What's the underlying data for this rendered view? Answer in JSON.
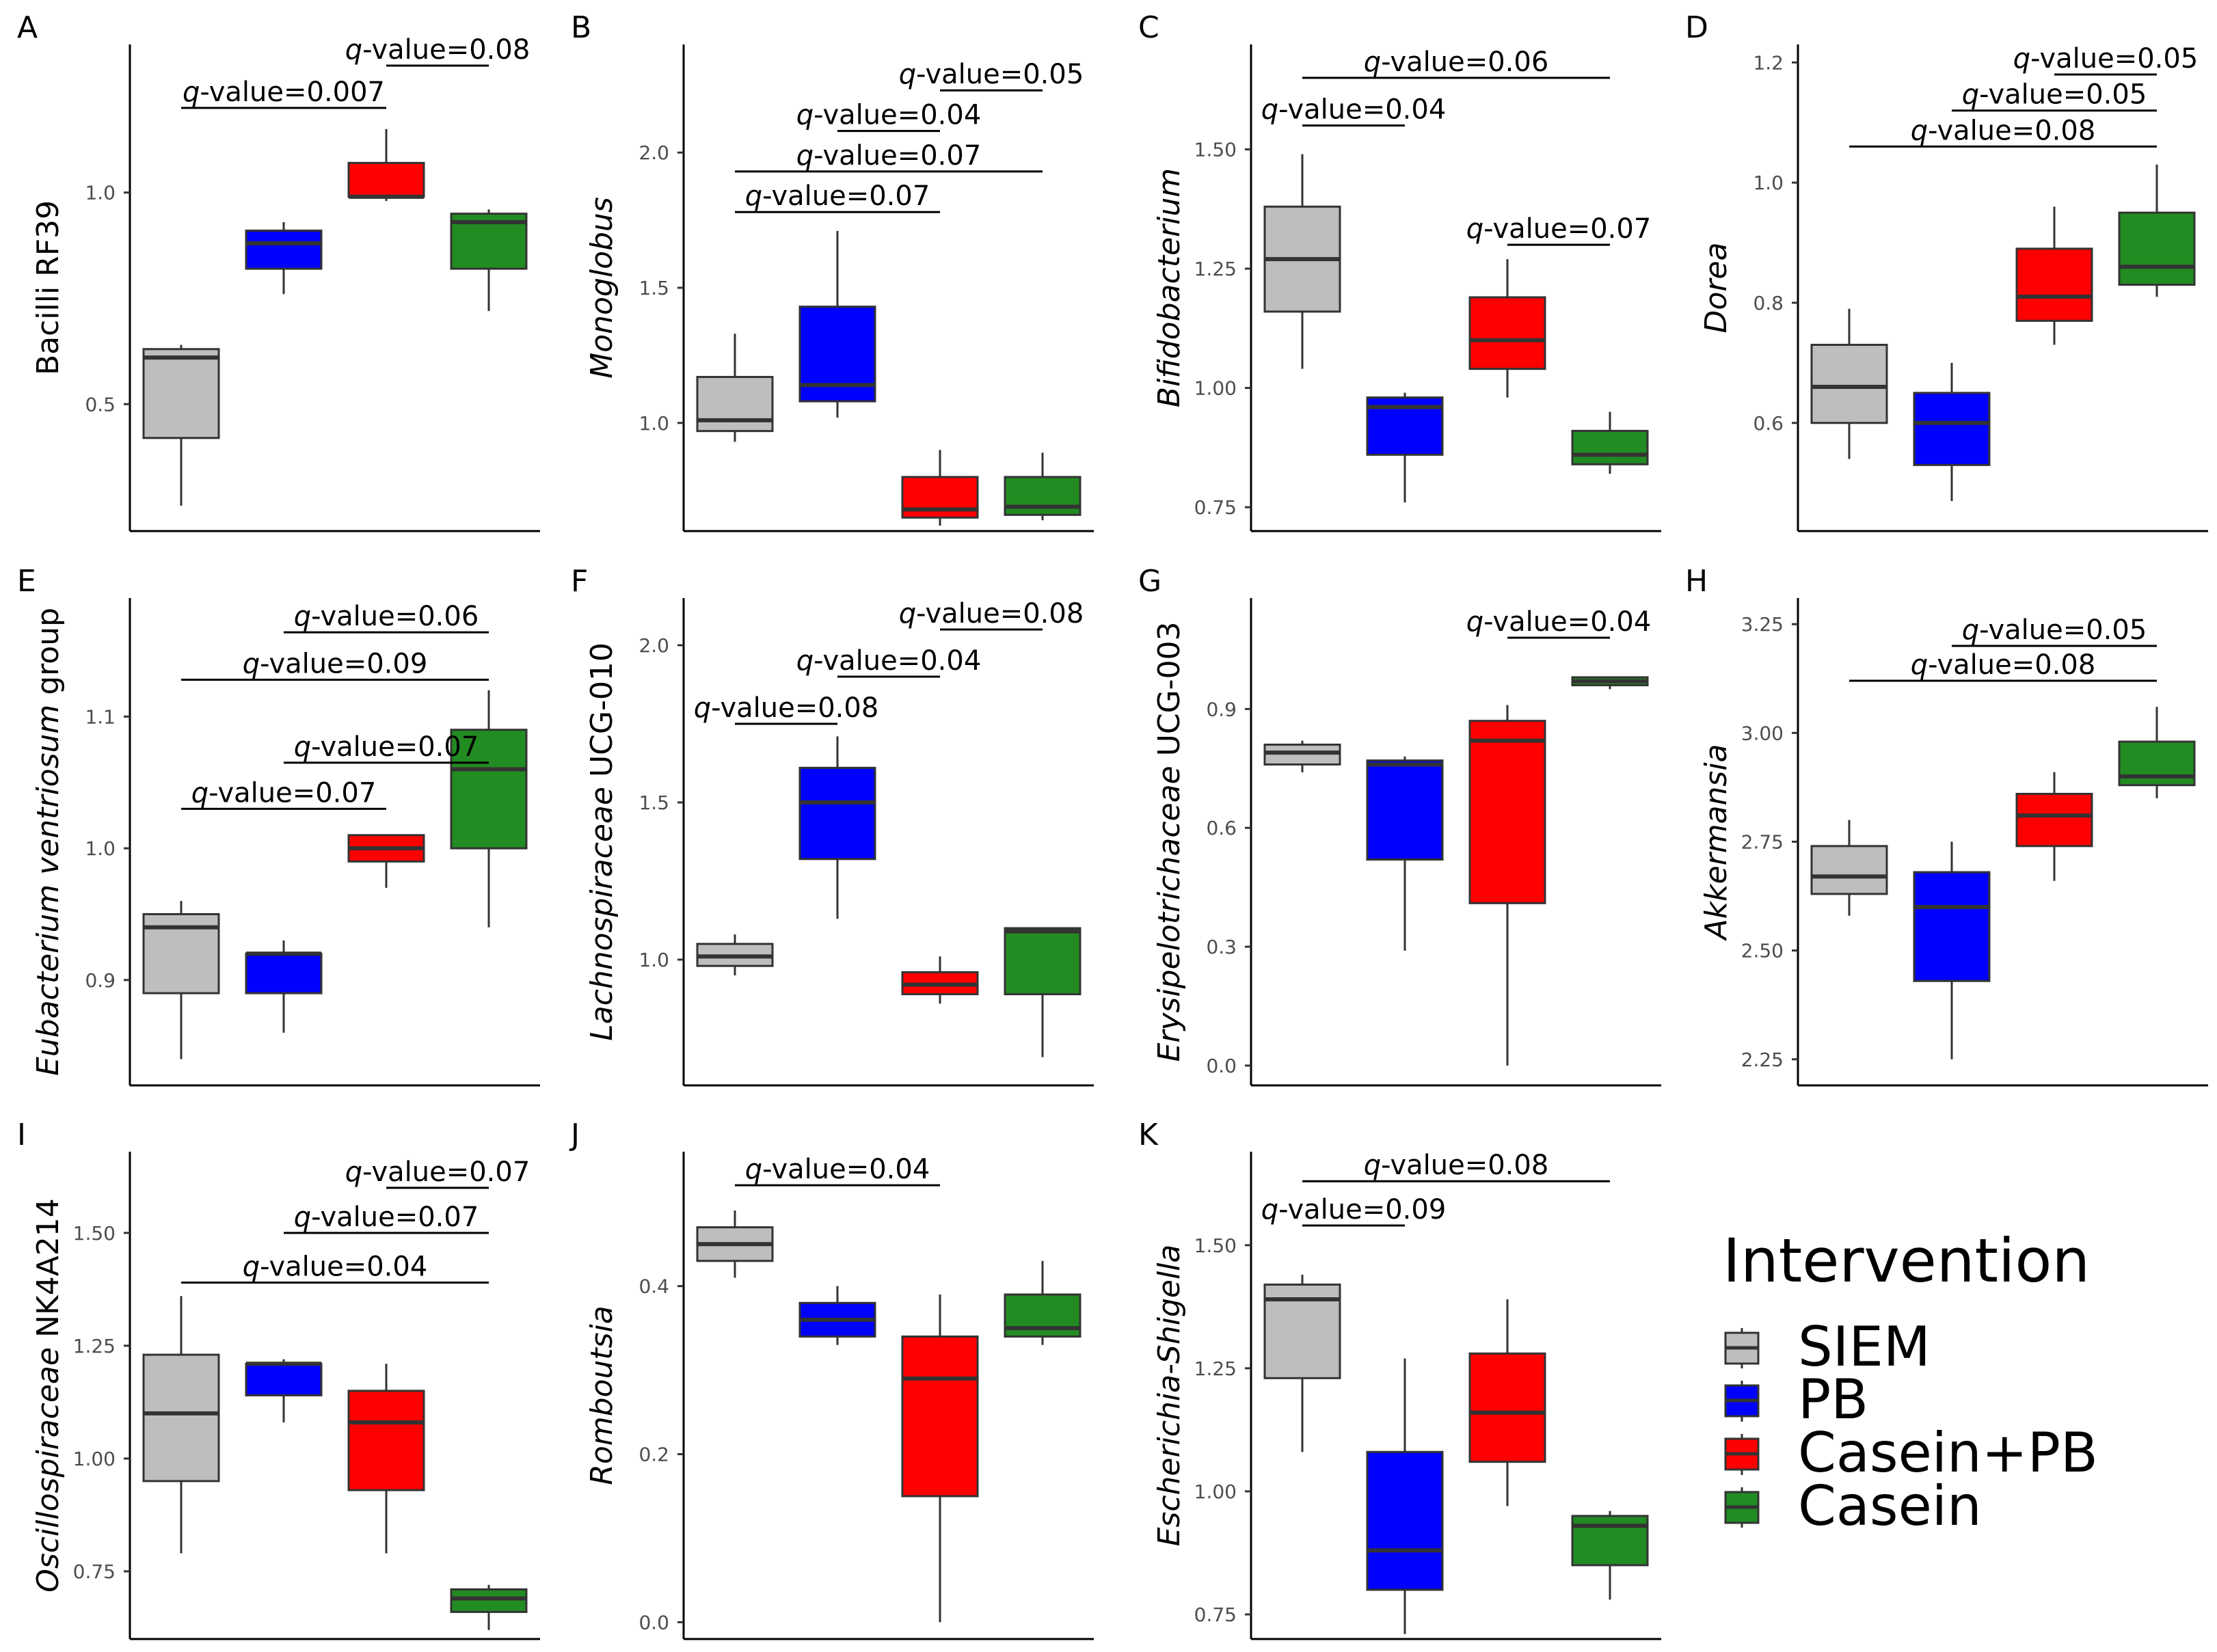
{
  "chart_data": [
    {
      "type": "box",
      "panel": "A",
      "ylabel": "Bacilli RF39",
      "ylabel_italic": false,
      "ylim": [
        0.2,
        1.35
      ],
      "yticks": [
        "0.5",
        "1.0"
      ],
      "groups": [
        "SIEM",
        "PB",
        "Casein+PB",
        "Casein"
      ],
      "boxes": [
        {
          "group": "SIEM",
          "min": 0.26,
          "q1": 0.42,
          "median": 0.61,
          "q3": 0.63,
          "max": 0.64
        },
        {
          "group": "PB",
          "min": 0.76,
          "q1": 0.82,
          "median": 0.88,
          "q3": 0.91,
          "max": 0.93
        },
        {
          "group": "Casein+PB",
          "min": 0.98,
          "q1": 0.99,
          "median": 0.99,
          "q3": 1.07,
          "max": 1.15
        },
        {
          "group": "Casein",
          "min": 0.72,
          "q1": 0.82,
          "median": 0.93,
          "q3": 0.95,
          "max": 0.96
        }
      ],
      "comparisons": [
        {
          "g1": 1,
          "g2": 3,
          "y": 1.2,
          "q": "0.007"
        },
        {
          "g1": 3,
          "g2": 4,
          "y": 1.3,
          "q": "0.08"
        }
      ]
    },
    {
      "type": "box",
      "panel": "B",
      "ylabel": "Monoglobus",
      "ylabel_italic": true,
      "ylim": [
        0.6,
        2.4
      ],
      "yticks": [
        "1.0",
        "1.5",
        "2.0"
      ],
      "groups": [
        "SIEM",
        "PB",
        "Casein+PB",
        "Casein"
      ],
      "boxes": [
        {
          "group": "SIEM",
          "min": 0.93,
          "q1": 0.97,
          "median": 1.01,
          "q3": 1.17,
          "max": 1.33
        },
        {
          "group": "PB",
          "min": 1.02,
          "q1": 1.08,
          "median": 1.14,
          "q3": 1.43,
          "max": 1.71
        },
        {
          "group": "Casein+PB",
          "min": 0.62,
          "q1": 0.65,
          "median": 0.68,
          "q3": 0.8,
          "max": 0.9
        },
        {
          "group": "Casein",
          "min": 0.64,
          "q1": 0.66,
          "median": 0.69,
          "q3": 0.8,
          "max": 0.89
        }
      ],
      "comparisons": [
        {
          "g1": 1,
          "g2": 3,
          "y": 1.78,
          "q": "0.07"
        },
        {
          "g1": 1,
          "g2": 4,
          "y": 1.93,
          "q": "0.07"
        },
        {
          "g1": 2,
          "g2": 3,
          "y": 2.08,
          "q": "0.04"
        },
        {
          "g1": 3,
          "g2": 4,
          "y": 2.23,
          "q": "0.05"
        }
      ]
    },
    {
      "type": "box",
      "panel": "C",
      "ylabel": "Bifidobacterium",
      "ylabel_italic": true,
      "ylim": [
        0.7,
        1.72
      ],
      "yticks": [
        "0.75",
        "1.00",
        "1.25",
        "1.50"
      ],
      "groups": [
        "SIEM",
        "PB",
        "Casein+PB",
        "Casein"
      ],
      "boxes": [
        {
          "group": "SIEM",
          "min": 1.04,
          "q1": 1.16,
          "median": 1.27,
          "q3": 1.38,
          "max": 1.49
        },
        {
          "group": "PB",
          "min": 0.76,
          "q1": 0.86,
          "median": 0.96,
          "q3": 0.98,
          "max": 0.99
        },
        {
          "group": "Casein+PB",
          "min": 0.98,
          "q1": 1.04,
          "median": 1.1,
          "q3": 1.19,
          "max": 1.27
        },
        {
          "group": "Casein",
          "min": 0.82,
          "q1": 0.84,
          "median": 0.86,
          "q3": 0.91,
          "max": 0.95
        }
      ],
      "comparisons": [
        {
          "g1": 3,
          "g2": 4,
          "y": 1.3,
          "q": "0.07"
        },
        {
          "g1": 1,
          "g2": 2,
          "y": 1.55,
          "q": "0.04"
        },
        {
          "g1": 1,
          "g2": 4,
          "y": 1.65,
          "q": "0.06"
        }
      ]
    },
    {
      "type": "box",
      "panel": "D",
      "ylabel": "Dorea",
      "ylabel_italic": true,
      "ylim": [
        0.42,
        1.23
      ],
      "yticks": [
        "0.6",
        "0.8",
        "1.0",
        "1.2"
      ],
      "groups": [
        "SIEM",
        "PB",
        "Casein+PB",
        "Casein"
      ],
      "boxes": [
        {
          "group": "SIEM",
          "min": 0.54,
          "q1": 0.6,
          "median": 0.66,
          "q3": 0.73,
          "max": 0.79
        },
        {
          "group": "PB",
          "min": 0.47,
          "q1": 0.53,
          "median": 0.6,
          "q3": 0.65,
          "max": 0.7
        },
        {
          "group": "Casein+PB",
          "min": 0.73,
          "q1": 0.77,
          "median": 0.81,
          "q3": 0.89,
          "max": 0.96
        },
        {
          "group": "Casein",
          "min": 0.81,
          "q1": 0.83,
          "median": 0.86,
          "q3": 0.95,
          "max": 1.03
        }
      ],
      "comparisons": [
        {
          "g1": 1,
          "g2": 4,
          "y": 1.06,
          "q": "0.08"
        },
        {
          "g1": 2,
          "g2": 4,
          "y": 1.12,
          "q": "0.05"
        },
        {
          "g1": 3,
          "g2": 4,
          "y": 1.18,
          "q": "0.05"
        }
      ]
    },
    {
      "type": "box",
      "panel": "E",
      "ylabel": "Eubacterium ventriosum group",
      "ylabel_italic": true,
      "ylabel_plain_suffix": " group",
      "ylabel_italic_part": "Eubacterium ventriosum",
      "ylim": [
        0.82,
        1.19
      ],
      "yticks": [
        "0.9",
        "1.0",
        "1.1"
      ],
      "groups": [
        "SIEM",
        "PB",
        "Casein+PB",
        "Casein"
      ],
      "boxes": [
        {
          "group": "SIEM",
          "min": 0.84,
          "q1": 0.89,
          "median": 0.94,
          "q3": 0.95,
          "max": 0.96
        },
        {
          "group": "PB",
          "min": 0.86,
          "q1": 0.89,
          "median": 0.92,
          "q3": 0.92,
          "max": 0.93
        },
        {
          "group": "Casein+PB",
          "min": 0.97,
          "q1": 0.99,
          "median": 1.0,
          "q3": 1.01,
          "max": 1.01
        },
        {
          "group": "Casein",
          "min": 0.94,
          "q1": 1.0,
          "median": 1.06,
          "q3": 1.09,
          "max": 1.12
        }
      ],
      "comparisons": [
        {
          "g1": 1,
          "g2": 3,
          "y": 1.03,
          "q": "0.07"
        },
        {
          "g1": 2,
          "g2": 4,
          "y": 1.065,
          "q": "0.07"
        },
        {
          "g1": 1,
          "g2": 4,
          "y": 1.128,
          "q": "0.09"
        },
        {
          "g1": 2,
          "g2": 4,
          "y": 1.164,
          "q": "0.06"
        }
      ]
    },
    {
      "type": "box",
      "panel": "F",
      "ylabel": "Lachnospiraceae UCG-010",
      "ylabel_italic": true,
      "ylabel_plain_suffix": " UCG-010",
      "ylabel_italic_part": "Lachnospiraceae",
      "ylim": [
        0.6,
        2.15
      ],
      "yticks": [
        "1.0",
        "1.5",
        "2.0"
      ],
      "groups": [
        "SIEM",
        "PB",
        "Casein+PB",
        "Casein"
      ],
      "boxes": [
        {
          "group": "SIEM",
          "min": 0.95,
          "q1": 0.98,
          "median": 1.01,
          "q3": 1.05,
          "max": 1.08
        },
        {
          "group": "PB",
          "min": 1.13,
          "q1": 1.32,
          "median": 1.5,
          "q3": 1.61,
          "max": 1.71
        },
        {
          "group": "Casein+PB",
          "min": 0.86,
          "q1": 0.89,
          "median": 0.92,
          "q3": 0.96,
          "max": 1.01
        },
        {
          "group": "Casein",
          "min": 0.69,
          "q1": 0.89,
          "median": 1.09,
          "q3": 1.1,
          "max": 1.1
        }
      ],
      "comparisons": [
        {
          "g1": 1,
          "g2": 2,
          "y": 1.75,
          "q": "0.08"
        },
        {
          "g1": 2,
          "g2": 3,
          "y": 1.9,
          "q": "0.04"
        },
        {
          "g1": 3,
          "g2": 4,
          "y": 2.05,
          "q": "0.08"
        }
      ]
    },
    {
      "type": "box",
      "panel": "G",
      "ylabel": "Erysipelotrichaceae UCG-003",
      "ylabel_italic": true,
      "ylabel_plain_suffix": " UCG-003",
      "ylabel_italic_part": "Erysipelotrichaceae",
      "ylim": [
        -0.05,
        1.18
      ],
      "yticks": [
        "0.0",
        "0.3",
        "0.6",
        "0.9"
      ],
      "groups": [
        "SIEM",
        "PB",
        "Casein+PB",
        "Casein"
      ],
      "boxes": [
        {
          "group": "SIEM",
          "min": 0.74,
          "q1": 0.76,
          "median": 0.79,
          "q3": 0.81,
          "max": 0.82
        },
        {
          "group": "PB",
          "min": 0.29,
          "q1": 0.52,
          "median": 0.76,
          "q3": 0.77,
          "max": 0.78
        },
        {
          "group": "Casein+PB",
          "min": 0.0,
          "q1": 0.41,
          "median": 0.82,
          "q3": 0.87,
          "max": 0.91
        },
        {
          "group": "Casein",
          "min": 0.95,
          "q1": 0.96,
          "median": 0.97,
          "q3": 0.98,
          "max": 0.98
        }
      ],
      "comparisons": [
        {
          "g1": 3,
          "g2": 4,
          "y": 1.08,
          "q": "0.04"
        }
      ]
    },
    {
      "type": "box",
      "panel": "H",
      "ylabel": "Akkermansia",
      "ylabel_italic": true,
      "ylim": [
        2.19,
        3.31
      ],
      "yticks": [
        "2.25",
        "2.50",
        "2.75",
        "3.00",
        "3.25"
      ],
      "groups": [
        "SIEM",
        "PB",
        "Casein+PB",
        "Casein"
      ],
      "boxes": [
        {
          "group": "SIEM",
          "min": 2.58,
          "q1": 2.63,
          "median": 2.67,
          "q3": 2.74,
          "max": 2.8
        },
        {
          "group": "PB",
          "min": 2.25,
          "q1": 2.43,
          "median": 2.6,
          "q3": 2.68,
          "max": 2.75
        },
        {
          "group": "Casein+PB",
          "min": 2.66,
          "q1": 2.74,
          "median": 2.81,
          "q3": 2.86,
          "max": 2.91
        },
        {
          "group": "Casein",
          "min": 2.85,
          "q1": 2.88,
          "median": 2.9,
          "q3": 2.98,
          "max": 3.06
        }
      ],
      "comparisons": [
        {
          "g1": 1,
          "g2": 4,
          "y": 3.12,
          "q": "0.08"
        },
        {
          "g1": 2,
          "g2": 4,
          "y": 3.2,
          "q": "0.05"
        }
      ]
    },
    {
      "type": "box",
      "panel": "I",
      "ylabel": "Oscillospiraceae NK4A214",
      "ylabel_italic": true,
      "ylabel_plain_suffix": " NK4A214",
      "ylabel_italic_part": "Oscillospiraceae",
      "ylim": [
        0.6,
        1.68
      ],
      "yticks": [
        "0.75",
        "1.00",
        "1.25",
        "1.50"
      ],
      "groups": [
        "SIEM",
        "PB",
        "Casein+PB",
        "Casein"
      ],
      "boxes": [
        {
          "group": "SIEM",
          "min": 0.79,
          "q1": 0.95,
          "median": 1.1,
          "q3": 1.23,
          "max": 1.36
        },
        {
          "group": "PB",
          "min": 1.08,
          "q1": 1.14,
          "median": 1.21,
          "q3": 1.21,
          "max": 1.22
        },
        {
          "group": "Casein+PB",
          "min": 0.79,
          "q1": 0.93,
          "median": 1.08,
          "q3": 1.15,
          "max": 1.21
        },
        {
          "group": "Casein",
          "min": 0.62,
          "q1": 0.66,
          "median": 0.69,
          "q3": 0.71,
          "max": 0.72
        }
      ],
      "comparisons": [
        {
          "g1": 1,
          "g2": 4,
          "y": 1.39,
          "q": "0.04"
        },
        {
          "g1": 2,
          "g2": 4,
          "y": 1.5,
          "q": "0.07"
        },
        {
          "g1": 3,
          "g2": 4,
          "y": 1.6,
          "q": "0.07"
        }
      ]
    },
    {
      "type": "box",
      "panel": "J",
      "ylabel": "Romboutsia",
      "ylabel_italic": true,
      "ylim": [
        -0.02,
        0.56
      ],
      "yticks": [
        "0.0",
        "0.2",
        "0.4"
      ],
      "groups": [
        "SIEM",
        "PB",
        "Casein+PB",
        "Casein"
      ],
      "boxes": [
        {
          "group": "SIEM",
          "min": 0.41,
          "q1": 0.43,
          "median": 0.45,
          "q3": 0.47,
          "max": 0.49
        },
        {
          "group": "PB",
          "min": 0.33,
          "q1": 0.34,
          "median": 0.36,
          "q3": 0.38,
          "max": 0.4
        },
        {
          "group": "Casein+PB",
          "min": 0.0,
          "q1": 0.15,
          "median": 0.29,
          "q3": 0.34,
          "max": 0.39
        },
        {
          "group": "Casein",
          "min": 0.33,
          "q1": 0.34,
          "median": 0.35,
          "q3": 0.39,
          "max": 0.43
        }
      ],
      "comparisons": [
        {
          "g1": 1,
          "g2": 3,
          "y": 0.52,
          "q": "0.04"
        }
      ]
    },
    {
      "type": "box",
      "panel": "K",
      "ylabel": "Escherichia-Shigella",
      "ylabel_italic": true,
      "ylim": [
        0.7,
        1.69
      ],
      "yticks": [
        "0.75",
        "1.00",
        "1.25",
        "1.50"
      ],
      "groups": [
        "SIEM",
        "PB",
        "Casein+PB",
        "Casein"
      ],
      "boxes": [
        {
          "group": "SIEM",
          "min": 1.08,
          "q1": 1.23,
          "median": 1.39,
          "q3": 1.42,
          "max": 1.44
        },
        {
          "group": "PB",
          "min": 0.71,
          "q1": 0.8,
          "median": 0.88,
          "q3": 1.08,
          "max": 1.27
        },
        {
          "group": "Casein+PB",
          "min": 0.97,
          "q1": 1.06,
          "median": 1.16,
          "q3": 1.28,
          "max": 1.39
        },
        {
          "group": "Casein",
          "min": 0.78,
          "q1": 0.85,
          "median": 0.93,
          "q3": 0.95,
          "max": 0.96
        }
      ],
      "comparisons": [
        {
          "g1": 1,
          "g2": 2,
          "y": 1.54,
          "q": "0.09"
        },
        {
          "g1": 1,
          "g2": 4,
          "y": 1.63,
          "q": "0.08"
        }
      ]
    }
  ],
  "comparison_prefix_italic": "q",
  "comparison_prefix_plain": "-value=",
  "legend": {
    "title": "Intervention",
    "items": [
      {
        "label": "SIEM",
        "color": "#bebebe"
      },
      {
        "label": "PB",
        "color": "#0000ff"
      },
      {
        "label": "Casein+PB",
        "color": "#ff0000"
      },
      {
        "label": "Casein",
        "color": "#228b22"
      }
    ]
  },
  "colors": {
    "SIEM": "#bebebe",
    "PB": "#0000ff",
    "Casein+PB": "#ff0000",
    "Casein": "#228b22",
    "box_outline": "#333333",
    "axis": "#000000",
    "tick_label": "#4d4d4d"
  }
}
